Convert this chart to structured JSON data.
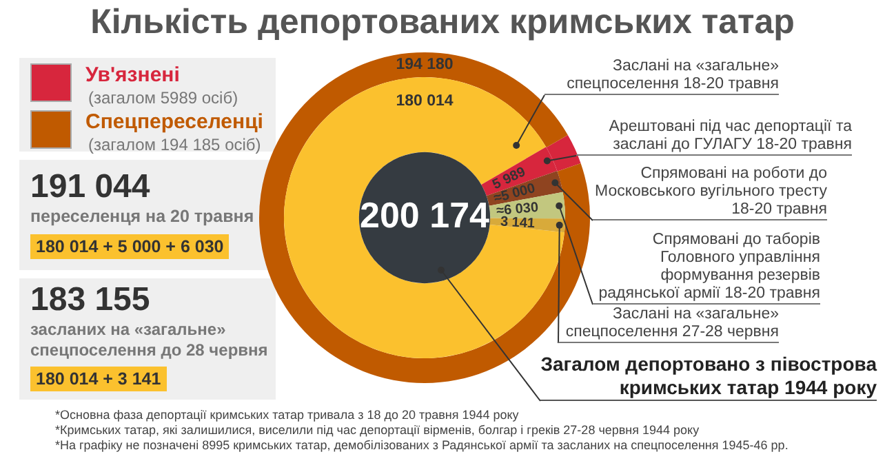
{
  "chart_data": [
    {
      "type": "donut",
      "categories": [
        "Ув'язнені",
        "Спецпереселенці"
      ],
      "values": [
        5989,
        194180
      ],
      "colors": [
        "#d7263d",
        "#c05a00"
      ],
      "value_labels": [
        null,
        "194 180"
      ],
      "legend": "top left",
      "annotations": [
        "(загалом 5989 осіб)",
        "(загалом 194 185 осіб)"
      ]
    },
    {
      "type": "donut",
      "title": "Кількість депортованих кримських татар",
      "categories": [
        "Заслані на «загальне» спецпоселення 18-20 травня",
        "Арештовані під час депортації та заслані до ГУЛАГУ 18-20 травня",
        "Спрямовані на роботи до Московського вугільного тресту 18-20 травня",
        "Спрямовані до таборів Головного управління формування резервів радянської армії 18-20 травня",
        "Заслані на «загальне» спецпоселення 27-28 червня"
      ],
      "values": [
        180014,
        5989,
        5000,
        6030,
        3141
      ],
      "colors": [
        "#fbc12e",
        "#d7263d",
        "#8f4420",
        "#c2c77f",
        "#d8aa3a"
      ],
      "value_labels": [
        "180 014",
        "5 989",
        "≈5 000",
        "≈6 030",
        "3 141"
      ],
      "annotations": [
        "200 174",
        "191 044",
        "переселенця на 20 травня",
        "180 014 + 5 000 + 6 030",
        "183 155",
        "засланих на «загальне» спецпоселення до 28 червня",
        "180 014 + 3 141",
        "Загалом депортовано з півострова кримських татар 1944 року",
        "*Основна фаза депортації кримських татар тривала з 18 до 20 травня 1944 року",
        "*Кримських татар, які залишилися, виселили під час депортації вірменів, болгар і греків 27-28 червня 1944 року",
        "*На графіку не позначені 8995 кримських татар, демобілізованих з Радянської армії та засланих на спецпоселення 1945-46 рр."
      ]
    }
  ]
}
